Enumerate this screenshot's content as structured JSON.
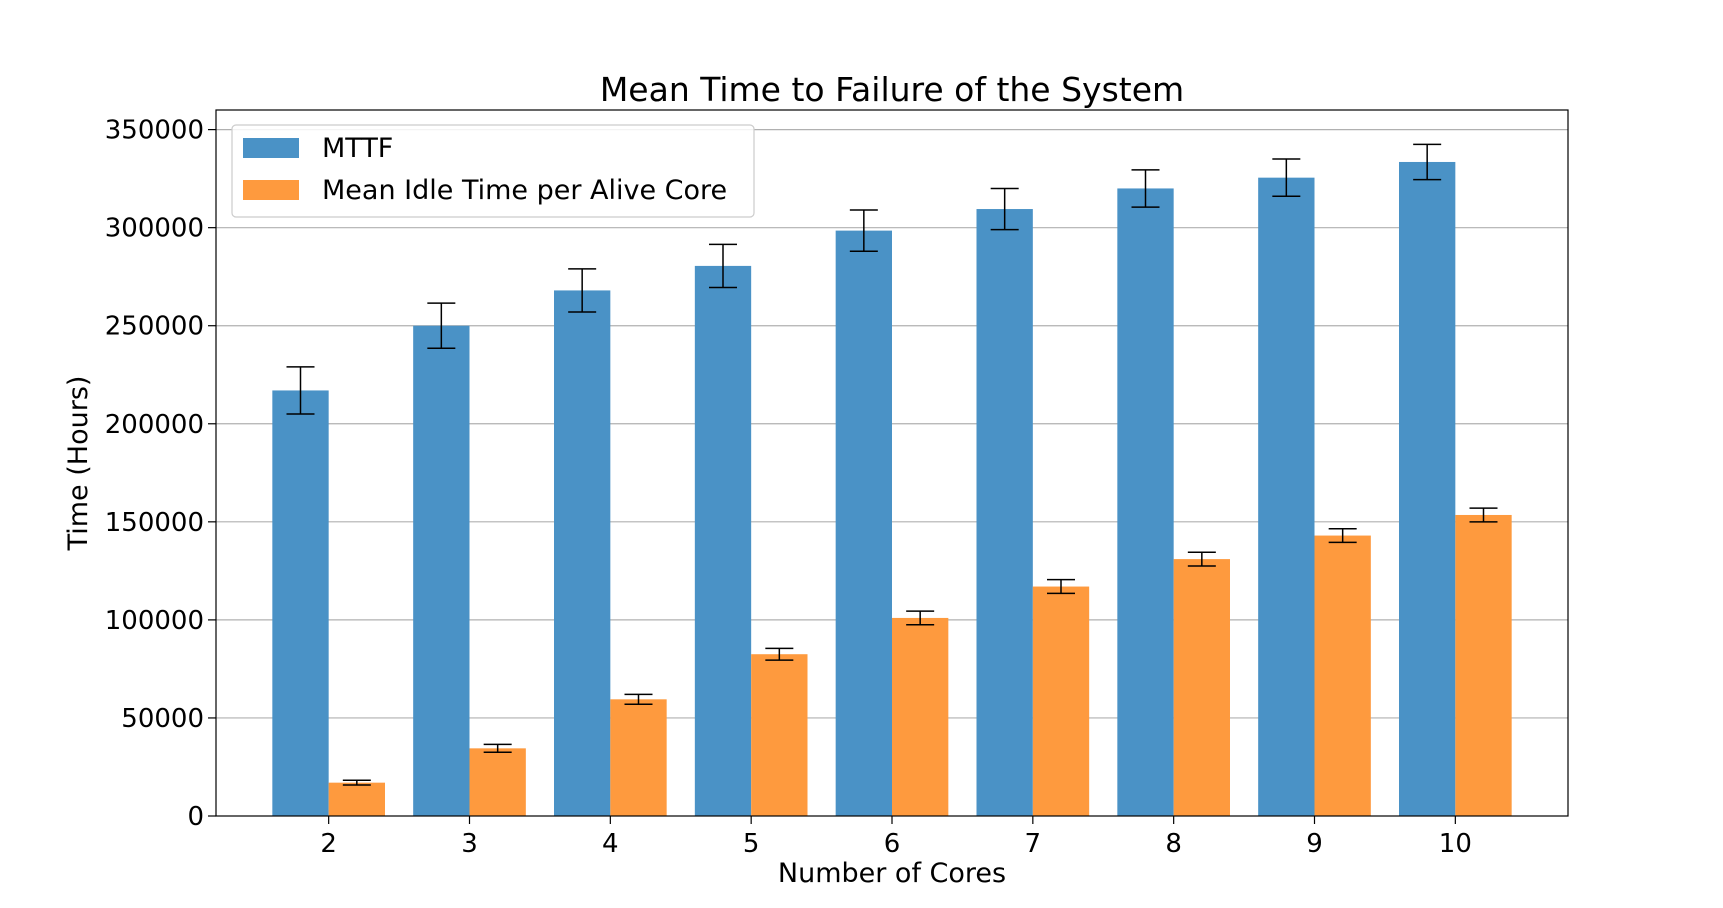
{
  "chart_data": {
    "type": "bar",
    "title": "Mean Time to Failure of the System",
    "xlabel": "Number of Cores",
    "ylabel": "Time (Hours)",
    "categories": [
      "2",
      "3",
      "4",
      "5",
      "6",
      "7",
      "8",
      "9",
      "10"
    ],
    "ylim": [
      0,
      360000
    ],
    "yticks": [
      0,
      50000,
      100000,
      150000,
      200000,
      250000,
      300000,
      350000
    ],
    "ytick_labels": [
      "0",
      "50000",
      "100000",
      "150000",
      "200000",
      "250000",
      "300000",
      "350000"
    ],
    "grid": "horizontal",
    "legend_position": "top-left",
    "series": [
      {
        "name": "MTTF",
        "color": "#4a92c6",
        "values": [
          217000,
          250000,
          268000,
          280500,
          298500,
          309500,
          320000,
          325500,
          333500
        ],
        "errors": [
          12000,
          11500,
          11000,
          11000,
          10500,
          10500,
          9500,
          9500,
          9000
        ]
      },
      {
        "name": "Mean Idle Time per Alive Core",
        "color": "#fe9a3e",
        "values": [
          17000,
          34500,
          59500,
          82500,
          101000,
          117000,
          131000,
          143000,
          153500
        ],
        "errors": [
          1200,
          2000,
          2500,
          3000,
          3500,
          3500,
          3500,
          3500,
          3500
        ]
      }
    ]
  }
}
